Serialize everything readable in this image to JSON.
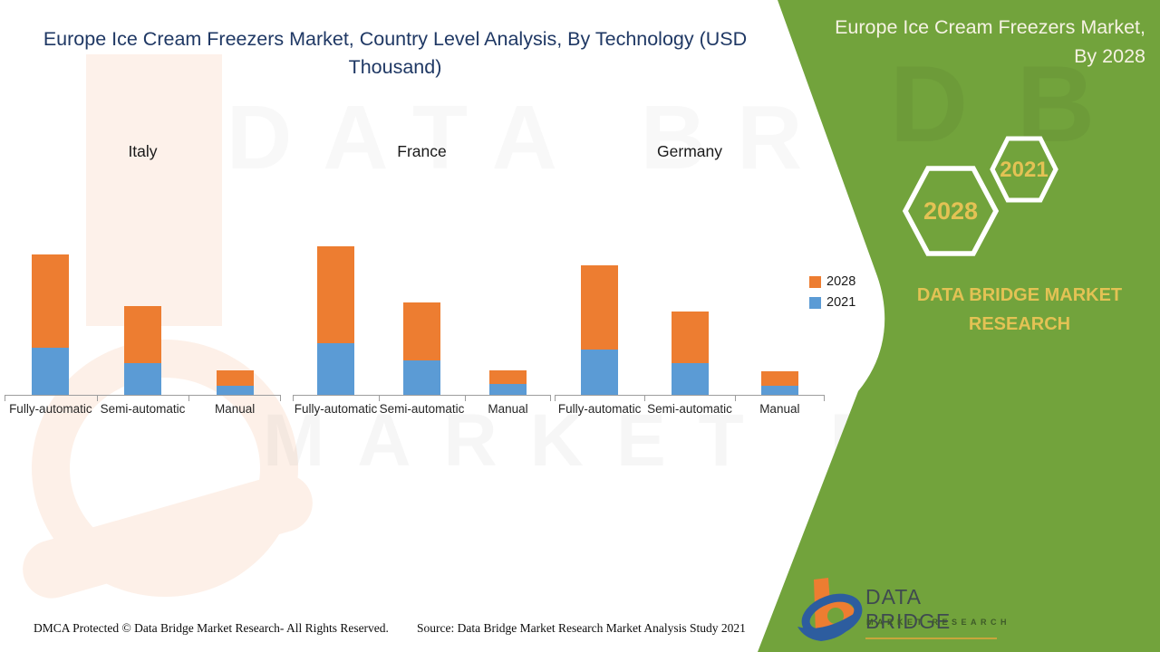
{
  "title": "Europe Ice Cream Freezers Market, Country Level Analysis, By Technology (USD Thousand)",
  "side_panel": {
    "heading_line1": "Europe Ice Cream Freezers Market,",
    "heading_line2": "By 2028",
    "hexagon_large_label": "2028",
    "hexagon_small_label": "2021",
    "brand_line1": "DATA BRIDGE MARKET",
    "brand_line2": "RESEARCH",
    "green_color": "#72A33C",
    "gold_color": "#E3C254"
  },
  "legend": {
    "items": [
      {
        "label": "2028",
        "color": "#ED7D31"
      },
      {
        "label": "2021",
        "color": "#5B9BD5"
      }
    ]
  },
  "chart_data": {
    "type": "bar",
    "subtype": "stacked-column",
    "title": "Europe Ice Cream Freezers Market, Country Level Analysis, By Technology (USD Thousand)",
    "units": "USD Thousand",
    "value_note": "no y-axis scale shown; values estimated from bar heights in relative units",
    "categories": [
      "Fully-automatic",
      "Semi-automatic",
      "Manual"
    ],
    "groups": [
      {
        "label": "Italy",
        "series": [
          {
            "name": "2021",
            "values": [
              52,
              35,
              10
            ]
          },
          {
            "name": "2028",
            "values": [
              103,
              63,
              17
            ]
          }
        ]
      },
      {
        "label": "France",
        "series": [
          {
            "name": "2021",
            "values": [
              57,
              38,
              12
            ]
          },
          {
            "name": "2028",
            "values": [
              107,
              64,
              15
            ]
          }
        ]
      },
      {
        "label": "Germany",
        "series": [
          {
            "name": "2021",
            "values": [
              50,
              35,
              10
            ]
          },
          {
            "name": "2028",
            "values": [
              93,
              57,
              16
            ]
          }
        ]
      }
    ],
    "series_colors": {
      "2021": "#5B9BD5",
      "2028": "#ED7D31"
    },
    "legend_position": "right",
    "grid": false
  },
  "watermark": {
    "text_top": "DATA BRI",
    "text_mid": "MARKET RE",
    "text_green": "D B"
  },
  "footer": {
    "dmca": "DMCA Protected © Data Bridge Market Research- All Rights Reserved.",
    "source": "Source: Data Bridge Market Research Market Analysis Study 2021"
  },
  "logo": {
    "name": "DATA BRIDGE",
    "subtitle": "MARKET RESEARCH"
  }
}
